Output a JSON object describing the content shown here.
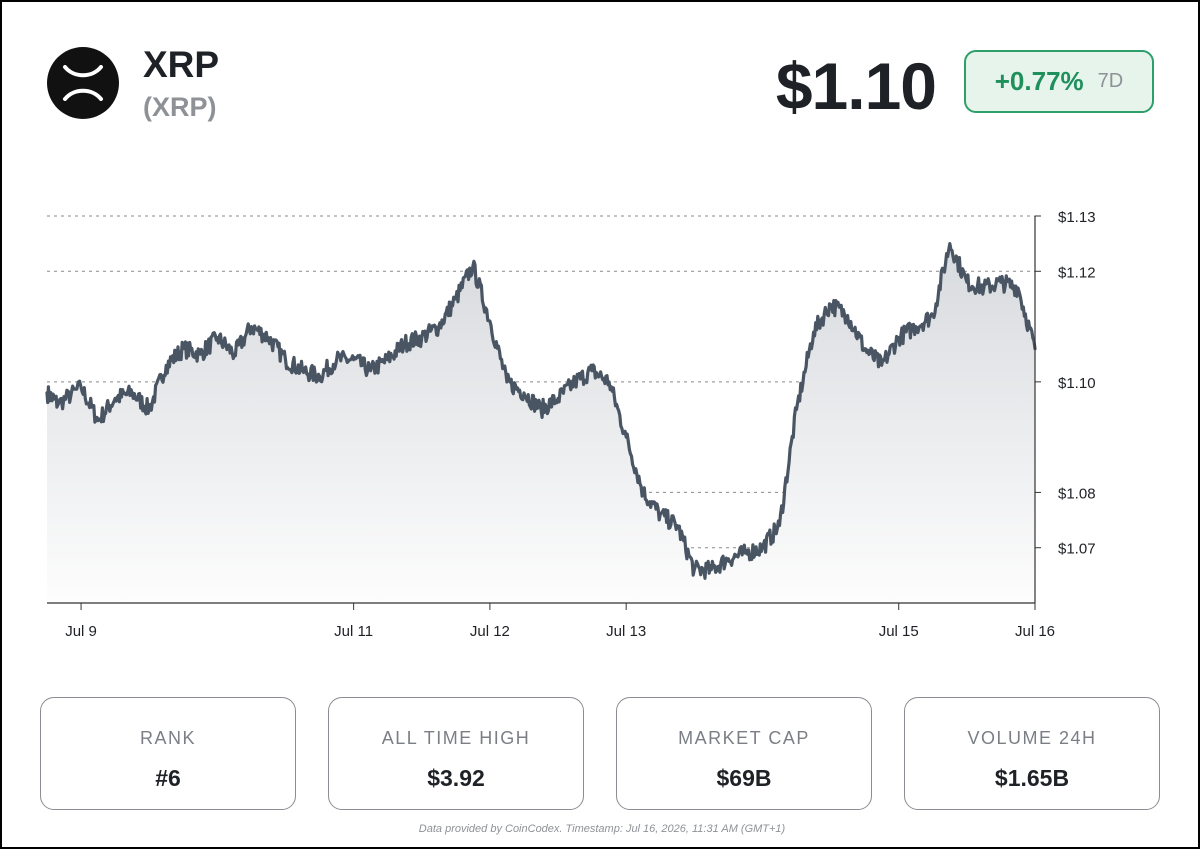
{
  "coin": {
    "name": "XRP",
    "symbol": "(XRP)",
    "price": "$1.10",
    "change": "+0.77%",
    "change_period": "7D",
    "logo_icon": "xrp-x-logo-icon"
  },
  "colors": {
    "line": "#4a5563",
    "grid": "#8a8a8a",
    "positive": "#1f8f5c",
    "positive_bg": "#e6f4ec"
  },
  "stats": [
    {
      "label": "RANK",
      "value": "#6"
    },
    {
      "label": "ALL TIME HIGH",
      "value": "$3.92"
    },
    {
      "label": "MARKET CAP",
      "value": "$69B"
    },
    {
      "label": "VOLUME 24H",
      "value": "$1.65B"
    }
  ],
  "footer": "Data provided by CoinCodex. Timestamp: Jul 16, 2026, 11:31 AM (GMT+1)",
  "chart_data": {
    "type": "area",
    "title": "",
    "xlabel": "",
    "ylabel": "",
    "grid": true,
    "x_tick_labels": [
      "Jul 9",
      "Jul 11",
      "Jul 12",
      "Jul 13",
      "Jul 15",
      "Jul 16"
    ],
    "y_tick_values": [
      1.07,
      1.08,
      1.1,
      1.12,
      1.13
    ],
    "y_tick_labels": [
      "$1.07",
      "$1.08",
      "$1.10",
      "$1.12",
      "$1.13"
    ],
    "axis_range": {
      "x_start": "Jul 8 18:00",
      "x_end": "Jul 16 00:00",
      "y_min": 1.06,
      "y_max": 1.13
    },
    "series": [
      {
        "values": [
          [
            "Jul 8 18:00",
            1.098
          ],
          [
            "Jul 8 20:00",
            1.096
          ],
          [
            "Jul 9 00:00",
            1.099
          ],
          [
            "Jul 9 03:00",
            1.093
          ],
          [
            "Jul 9 06:00",
            1.097
          ],
          [
            "Jul 9 09:00",
            1.098
          ],
          [
            "Jul 9 12:00",
            1.095
          ],
          [
            "Jul 9 15:00",
            1.103
          ],
          [
            "Jul 9 18:00",
            1.106
          ],
          [
            "Jul 9 21:00",
            1.105
          ],
          [
            "Jul 10 00:00",
            1.108
          ],
          [
            "Jul 10 03:00",
            1.105
          ],
          [
            "Jul 10 06:00",
            1.11
          ],
          [
            "Jul 10 09:00",
            1.108
          ],
          [
            "Jul 10 12:00",
            1.104
          ],
          [
            "Jul 10 15:00",
            1.102
          ],
          [
            "Jul 10 18:00",
            1.101
          ],
          [
            "Jul 10 21:00",
            1.104
          ],
          [
            "Jul 11 00:00",
            1.104
          ],
          [
            "Jul 11 03:00",
            1.102
          ],
          [
            "Jul 11 06:00",
            1.104
          ],
          [
            "Jul 11 09:00",
            1.107
          ],
          [
            "Jul 11 12:00",
            1.108
          ],
          [
            "Jul 11 15:00",
            1.11
          ],
          [
            "Jul 11 18:00",
            1.115
          ],
          [
            "Jul 11 21:00",
            1.121
          ],
          [
            "Jul 12 00:00",
            1.111
          ],
          [
            "Jul 12 03:00",
            1.1
          ],
          [
            "Jul 12 06:00",
            1.098
          ],
          [
            "Jul 12 09:00",
            1.095
          ],
          [
            "Jul 12 12:00",
            1.097
          ],
          [
            "Jul 12 15:00",
            1.1
          ],
          [
            "Jul 12 18:00",
            1.102
          ],
          [
            "Jul 12 21:00",
            1.1
          ],
          [
            "Jul 13 00:00",
            1.09
          ],
          [
            "Jul 13 03:00",
            1.08
          ],
          [
            "Jul 13 06:00",
            1.076
          ],
          [
            "Jul 13 09:00",
            1.074
          ],
          [
            "Jul 13 12:00",
            1.066
          ],
          [
            "Jul 13 15:00",
            1.066
          ],
          [
            "Jul 13 18:00",
            1.068
          ],
          [
            "Jul 13 21:00",
            1.069
          ],
          [
            "Jul 14 00:00",
            1.07
          ],
          [
            "Jul 14 03:00",
            1.074
          ],
          [
            "Jul 14 06:00",
            1.095
          ],
          [
            "Jul 14 09:00",
            1.109
          ],
          [
            "Jul 14 12:00",
            1.114
          ],
          [
            "Jul 14 15:00",
            1.112
          ],
          [
            "Jul 14 18:00",
            1.106
          ],
          [
            "Jul 14 21:00",
            1.103
          ],
          [
            "Jul 15 00:00",
            1.108
          ],
          [
            "Jul 15 03:00",
            1.11
          ],
          [
            "Jul 15 06:00",
            1.112
          ],
          [
            "Jul 15 09:00",
            1.125
          ],
          [
            "Jul 15 12:00",
            1.118
          ],
          [
            "Jul 15 15:00",
            1.117
          ],
          [
            "Jul 15 18:00",
            1.118
          ],
          [
            "Jul 15 21:00",
            1.117
          ],
          [
            "Jul 16 00:00",
            1.106
          ]
        ]
      }
    ]
  }
}
